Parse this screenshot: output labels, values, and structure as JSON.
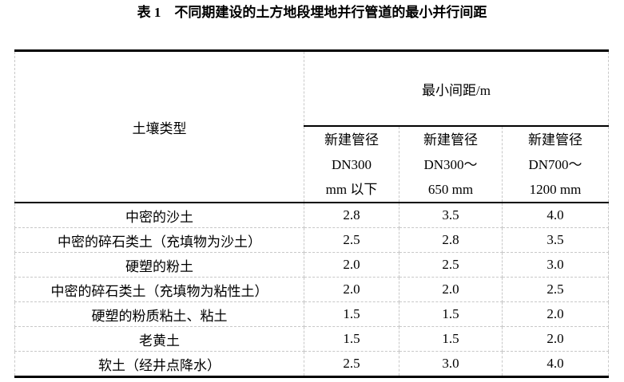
{
  "title": "表 1　不同期建设的土方地段埋地并行管道的最小并行间距",
  "table": {
    "soil_header": "土壤类型",
    "group_header": "最小间距/m",
    "columns": [
      {
        "line1": "新建管径",
        "line2": "DN300",
        "line3": "mm 以下"
      },
      {
        "line1": "新建管径",
        "line2": "DN300～",
        "line3": "650 mm"
      },
      {
        "line1": "新建管径",
        "line2": "DN700～",
        "line3": "1200 mm"
      }
    ],
    "rows": [
      {
        "soil": "中密的沙土",
        "values": [
          "2.8",
          "3.5",
          "4.0"
        ]
      },
      {
        "soil": "中密的碎石类土（充填物为沙土）",
        "values": [
          "2.5",
          "2.8",
          "3.5"
        ]
      },
      {
        "soil": "硬塑的粉土",
        "values": [
          "2.0",
          "2.5",
          "3.0"
        ]
      },
      {
        "soil": "中密的碎石类土（充填物为粘性土）",
        "values": [
          "2.0",
          "2.0",
          "2.5"
        ]
      },
      {
        "soil": "硬塑的粉质粘土、粘土",
        "values": [
          "1.5",
          "1.5",
          "2.0"
        ]
      },
      {
        "soil": "老黄土",
        "values": [
          "1.5",
          "1.5",
          "2.0"
        ]
      },
      {
        "soil": "软土（经井点降水）",
        "values": [
          "2.5",
          "3.0",
          "4.0"
        ]
      }
    ]
  }
}
